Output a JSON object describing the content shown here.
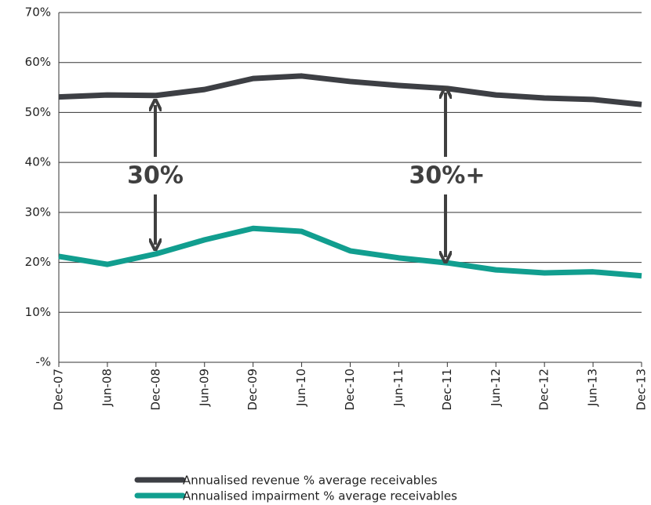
{
  "chart_data": {
    "type": "line",
    "categories": [
      "Dec-07",
      "Jun-08",
      "Dec-08",
      "Jun-09",
      "Dec-09",
      "Jun-10",
      "Dec-10",
      "Jun-11",
      "Dec-11",
      "Jun-12",
      "Dec-12",
      "Jun-13",
      "Dec-13"
    ],
    "series": [
      {
        "name": "Annualised revenue % average receivables",
        "color": "#3d3f44",
        "values": [
          53.1,
          53.5,
          53.4,
          54.6,
          56.8,
          57.3,
          56.2,
          55.4,
          54.8,
          53.5,
          52.9,
          52.6,
          51.6
        ]
      },
      {
        "name": "Annualised impairment % average receivables",
        "color": "#119e8f",
        "values": [
          21.2,
          19.6,
          21.7,
          24.5,
          26.8,
          26.2,
          22.3,
          20.9,
          19.9,
          18.5,
          17.9,
          18.1,
          17.3
        ]
      }
    ],
    "ylim": [
      0,
      70
    ],
    "yticks": [
      {
        "value": 0,
        "label": "-%"
      },
      {
        "value": 10,
        "label": "10%"
      },
      {
        "value": 20,
        "label": "20%"
      },
      {
        "value": 30,
        "label": "30%"
      },
      {
        "value": 40,
        "label": "40%"
      },
      {
        "value": 50,
        "label": "50%"
      },
      {
        "value": 60,
        "label": "60%"
      },
      {
        "value": 70,
        "label": "70%"
      }
    ],
    "grid": true,
    "legend": "bottom",
    "annotations": [
      "30%",
      "30%+"
    ]
  }
}
